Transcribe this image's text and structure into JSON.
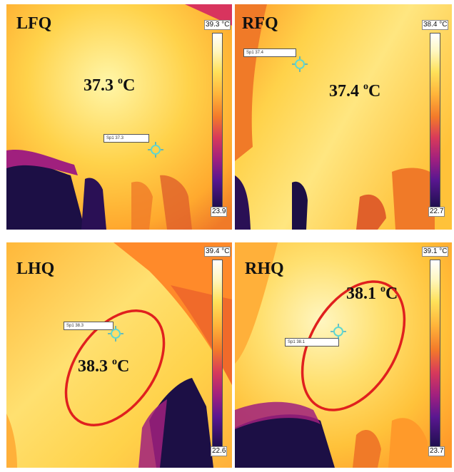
{
  "panels": [
    {
      "id": "lfq",
      "label": "LFQ",
      "temp_value": "37.3",
      "temp_unit": "C",
      "temp_degree": "o",
      "scale_max": "39.3 °C",
      "scale_min": "23.9",
      "spot_label": "Sp1 37.3",
      "ellipse": false
    },
    {
      "id": "rfq",
      "label": "RFQ",
      "temp_value": "37.4",
      "temp_unit": "C",
      "temp_degree": "o",
      "scale_max": "38.4 °C",
      "scale_min": "22.7",
      "spot_label": "Sp1 37.4",
      "ellipse": false
    },
    {
      "id": "lhq",
      "label": "LHQ",
      "temp_value": "38.3",
      "temp_unit": "C",
      "temp_degree": "o",
      "scale_max": "39.4 °C",
      "scale_min": "22.6",
      "spot_label": "Sp1 38.3",
      "ellipse": true
    },
    {
      "id": "rhq",
      "label": "RHQ",
      "temp_value": "38.1",
      "temp_unit": "C",
      "temp_degree": "o",
      "scale_max": "39.1 °C",
      "scale_min": "23.7",
      "spot_label": "Sp1 38.1",
      "ellipse": true
    }
  ],
  "colors": {
    "ellipse": "#e0201e",
    "crosshair": "#5fd7d0",
    "hot": "#ffe680",
    "warm": "#ff9a2a",
    "cool": "#a0207e",
    "cold": "#1c0f45"
  }
}
